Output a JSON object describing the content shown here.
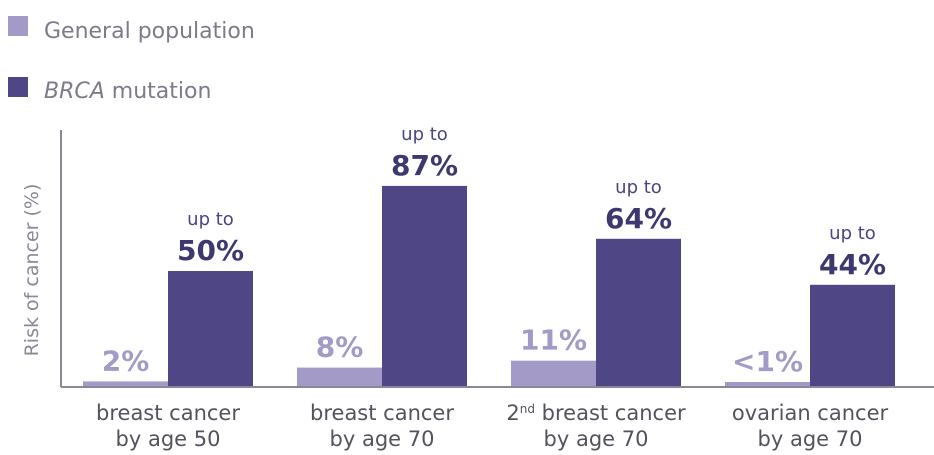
{
  "chart_data": {
    "type": "bar",
    "ylabel": "Risk of cancer (%)",
    "ylim": [
      0,
      100
    ],
    "categories": [
      {
        "line1_pre": "breast cancer",
        "line1_sup": "",
        "line1_post": "",
        "line2": "by age 50"
      },
      {
        "line1_pre": "breast cancer",
        "line1_sup": "",
        "line1_post": "",
        "line2": "by age 70"
      },
      {
        "line1_pre": "2",
        "line1_sup": "nd",
        "line1_post": " breast cancer",
        "line2": "by age 70"
      },
      {
        "line1_pre": "ovarian cancer",
        "line1_sup": "",
        "line1_post": "",
        "line2": "by age 70"
      }
    ],
    "series": [
      {
        "name_italic": "",
        "name": "General population",
        "color": "#a39ac8",
        "values": [
          2,
          8,
          11,
          1
        ],
        "labels": [
          "2%",
          "8%",
          "11%",
          "<1%"
        ],
        "prefix": [
          "",
          "",
          "",
          ""
        ]
      },
      {
        "name_italic": "BRCA",
        "name": " mutation",
        "color": "#4f4785",
        "values": [
          50,
          87,
          64,
          44
        ],
        "labels": [
          "50%",
          "87%",
          "64%",
          "44%"
        ],
        "prefix": [
          "up to",
          "up to",
          "up to",
          "up to"
        ]
      }
    ],
    "legend_position": "top-left",
    "grid": false
  }
}
